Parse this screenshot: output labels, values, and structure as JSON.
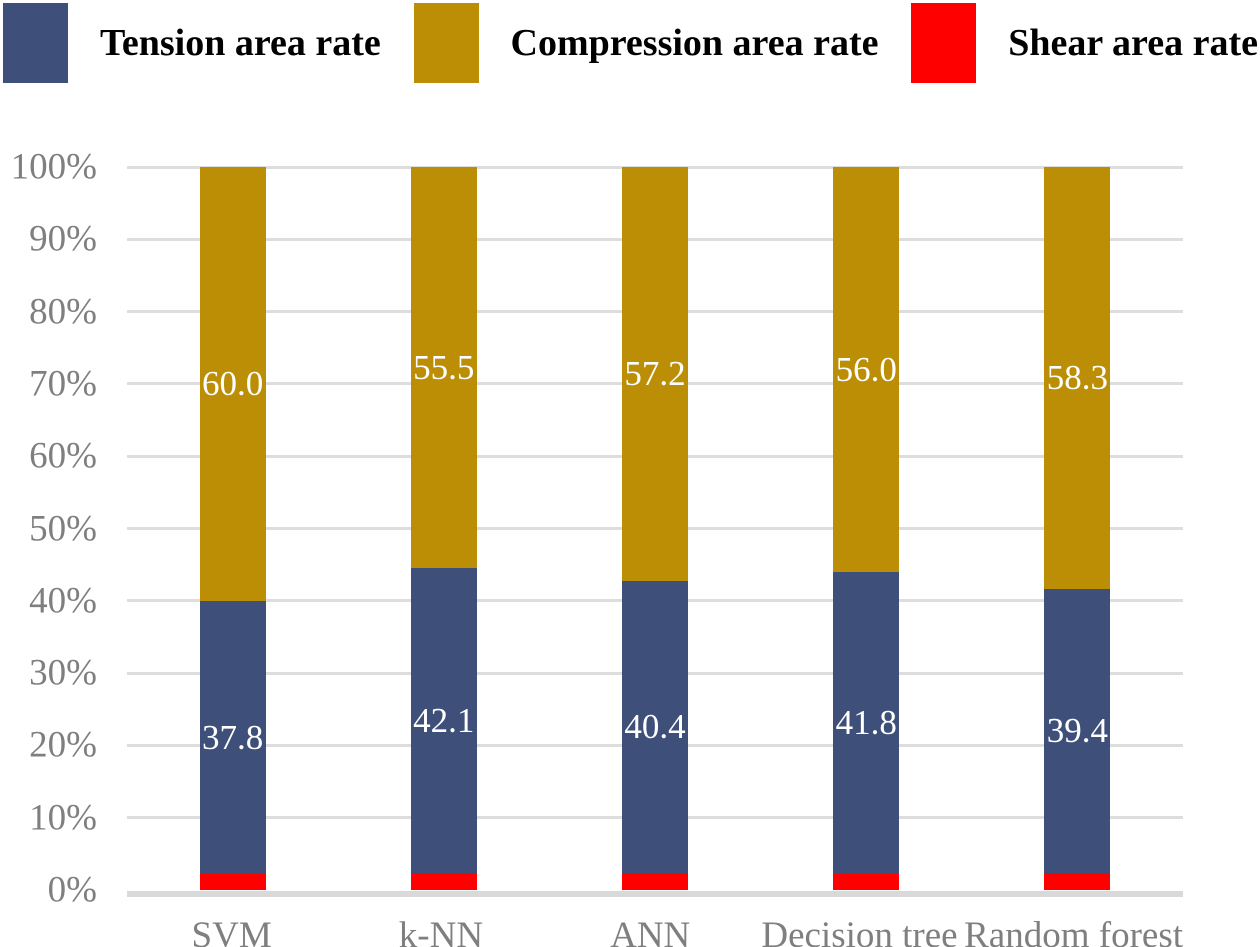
{
  "colors": {
    "background": "#FFFFFF",
    "tension": "#3E4F79",
    "compression": "#BC8E05",
    "shear": "#FF0000",
    "gridline": "#DDDDDD",
    "axis_line": "#D9D9D9",
    "tick_text": "#7F7F7F",
    "value_label_text": "#FFFFFF",
    "legend_text": "#000000"
  },
  "legend": {
    "position": "top",
    "items": [
      {
        "label": "Tension area rate",
        "color": "#3E4F79"
      },
      {
        "label": "Compression area rate",
        "color": "#BC8E05"
      },
      {
        "label": "Shear area rate",
        "color": "#FF0000"
      }
    ]
  },
  "chart_data": {
    "type": "bar",
    "stacked": true,
    "orientation": "vertical",
    "title": "",
    "xlabel": "",
    "ylabel": "",
    "categories": [
      "SVM",
      "k-NN",
      "ANN",
      "Decision tree",
      "Random forest"
    ],
    "series": [
      {
        "name": "Shear area rate",
        "color": "#FF0000",
        "values": [
          2.2,
          2.4,
          2.4,
          2.2,
          2.3
        ],
        "labels": [
          "",
          "",
          "",
          "",
          ""
        ]
      },
      {
        "name": "Tension area rate",
        "color": "#3E4F79",
        "values": [
          37.8,
          42.1,
          40.4,
          41.8,
          39.4
        ],
        "labels": [
          "37.8",
          "42.1",
          "40.4",
          "41.8",
          "39.4"
        ]
      },
      {
        "name": "Compression area rate",
        "color": "#BC8E05",
        "values": [
          60.0,
          55.5,
          57.2,
          56.0,
          58.3
        ],
        "labels": [
          "60.0",
          "55.5",
          "57.2",
          "56.0",
          "58.3"
        ]
      }
    ],
    "stack_order_bottom_to_top": [
      "Shear area rate",
      "Tension area rate",
      "Compression area rate"
    ],
    "ylim": [
      0,
      100
    ],
    "ytick_step": 10,
    "yticks": [
      "0%",
      "10%",
      "20%",
      "30%",
      "40%",
      "50%",
      "60%",
      "70%",
      "80%",
      "90%",
      "100%"
    ],
    "grid": "horizontal",
    "legend_position": "top"
  }
}
